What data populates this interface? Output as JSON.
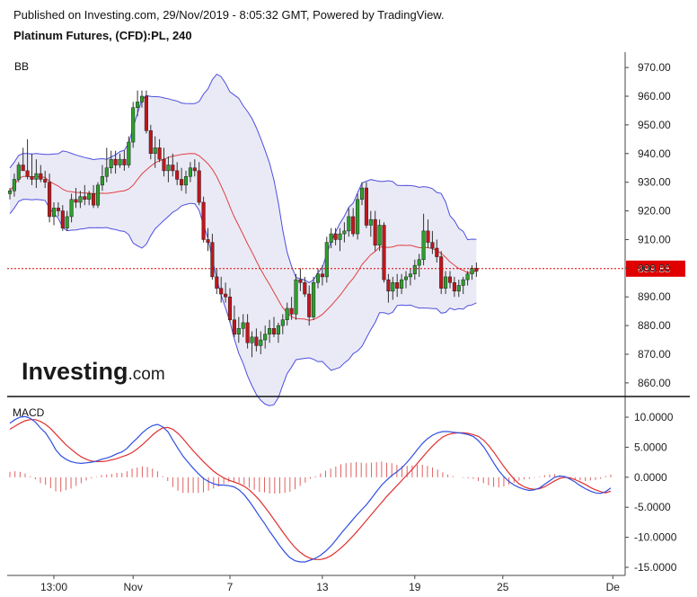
{
  "header": {
    "published": "Published on Investing.com, 29/Nov/2019 - 8:05:32 GMT, Powered by TradingView.",
    "instrument": "Platinum Futures, (CFD):PL, 240"
  },
  "logo": {
    "word": "Investing",
    "suffix": ".com"
  },
  "colors": {
    "up": "#2ca02c",
    "down": "#c0161c",
    "band": "#4e4ee0",
    "band_fill": "#e6e6f5",
    "mid": "#e04040",
    "macd": "#2f4fe0",
    "signal": "#e03030",
    "hist": "#e06060",
    "last": "#e00000"
  },
  "chart_data": [
    {
      "type": "candlestick",
      "panel_label": "BB",
      "y_ticks": [
        "970.00",
        "960.00",
        "950.00",
        "940.00",
        "930.00",
        "920.00",
        "910.00",
        "900.00",
        "890.00",
        "880.00",
        "870.00",
        "860.00"
      ],
      "ylim": [
        855,
        975
      ],
      "last_price": "899.85",
      "x_ticks": [
        {
          "label": "13:00",
          "i": 10
        },
        {
          "label": "Nov",
          "i": 28
        },
        {
          "label": "7",
          "i": 50
        },
        {
          "label": "13",
          "i": 71
        },
        {
          "label": "19",
          "i": 92
        },
        {
          "label": "25",
          "i": 112
        },
        {
          "label": "De",
          "i": 137
        }
      ],
      "candles": [
        [
          926,
          928,
          924,
          927
        ],
        [
          927,
          933,
          925,
          931
        ],
        [
          931,
          937,
          930,
          936
        ],
        [
          936,
          942,
          934,
          934
        ],
        [
          934,
          945,
          931,
          932
        ],
        [
          932,
          940,
          929,
          931
        ],
        [
          931,
          938,
          928,
          933
        ],
        [
          933,
          936,
          930,
          931
        ],
        [
          931,
          934,
          928,
          930
        ],
        [
          930,
          933,
          916,
          918
        ],
        [
          918,
          923,
          915,
          921
        ],
        [
          921,
          923,
          918,
          920
        ],
        [
          920,
          922,
          913,
          914
        ],
        [
          914,
          920,
          913,
          918
        ],
        [
          918,
          926,
          916,
          924
        ],
        [
          924,
          928,
          921,
          923
        ],
        [
          923,
          927,
          921,
          925
        ],
        [
          925,
          929,
          922,
          924
        ],
        [
          924,
          927,
          922,
          926
        ],
        [
          926,
          929,
          921,
          922
        ],
        [
          922,
          930,
          921,
          929
        ],
        [
          929,
          936,
          927,
          932
        ],
        [
          932,
          942,
          930,
          935
        ],
        [
          935,
          941,
          933,
          938
        ],
        [
          938,
          941,
          933,
          936
        ],
        [
          936,
          940,
          935,
          938
        ],
        [
          938,
          941,
          934,
          936
        ],
        [
          936,
          946,
          935,
          944
        ],
        [
          944,
          958,
          942,
          956
        ],
        [
          956,
          962,
          953,
          958
        ],
        [
          958,
          962,
          956,
          960
        ],
        [
          960,
          962,
          947,
          948
        ],
        [
          948,
          950,
          938,
          940
        ],
        [
          940,
          946,
          935,
          942
        ],
        [
          942,
          945,
          937,
          938
        ],
        [
          938,
          942,
          932,
          934
        ],
        [
          934,
          939,
          930,
          936
        ],
        [
          936,
          940,
          932,
          934
        ],
        [
          934,
          937,
          929,
          931
        ],
        [
          931,
          935,
          927,
          929
        ],
        [
          929,
          934,
          926,
          932
        ],
        [
          932,
          937,
          930,
          935
        ],
        [
          935,
          938,
          932,
          934
        ],
        [
          934,
          937,
          922,
          923
        ],
        [
          923,
          925,
          909,
          910
        ],
        [
          910,
          914,
          906,
          909
        ],
        [
          909,
          912,
          896,
          897
        ],
        [
          897,
          900,
          891,
          893
        ],
        [
          893,
          897,
          888,
          891
        ],
        [
          891,
          895,
          888,
          890
        ],
        [
          890,
          893,
          881,
          882
        ],
        [
          882,
          887,
          876,
          877
        ],
        [
          877,
          883,
          874,
          879
        ],
        [
          879,
          884,
          876,
          881
        ],
        [
          881,
          884,
          872,
          874
        ],
        [
          874,
          878,
          869,
          876
        ],
        [
          876,
          879,
          871,
          873
        ],
        [
          873,
          878,
          870,
          875
        ],
        [
          875,
          880,
          872,
          877
        ],
        [
          877,
          882,
          874,
          879
        ],
        [
          879,
          883,
          876,
          877
        ],
        [
          877,
          881,
          874,
          880
        ],
        [
          880,
          884,
          877,
          882
        ],
        [
          882,
          888,
          880,
          886
        ],
        [
          886,
          890,
          882,
          884
        ],
        [
          884,
          898,
          882,
          896
        ],
        [
          896,
          900,
          892,
          895
        ],
        [
          895,
          897,
          890,
          891
        ],
        [
          891,
          894,
          880,
          883
        ],
        [
          883,
          897,
          882,
          895
        ],
        [
          895,
          900,
          893,
          898
        ],
        [
          898,
          901,
          894,
          897
        ],
        [
          897,
          911,
          895,
          909
        ],
        [
          909,
          914,
          907,
          912
        ],
        [
          912,
          914,
          908,
          910
        ],
        [
          910,
          914,
          906,
          912
        ],
        [
          912,
          916,
          909,
          913
        ],
        [
          913,
          921,
          911,
          918
        ],
        [
          918,
          921,
          911,
          912
        ],
        [
          912,
          926,
          910,
          924
        ],
        [
          924,
          930,
          922,
          928
        ],
        [
          928,
          930,
          914,
          915
        ],
        [
          915,
          920,
          911,
          917
        ],
        [
          917,
          920,
          906,
          908
        ],
        [
          908,
          917,
          906,
          915
        ],
        [
          915,
          916,
          895,
          896
        ],
        [
          896,
          898,
          888,
          892
        ],
        [
          892,
          897,
          889,
          895
        ],
        [
          895,
          898,
          890,
          893
        ],
        [
          893,
          898,
          891,
          896
        ],
        [
          896,
          899,
          893,
          897
        ],
        [
          897,
          900,
          894,
          898
        ],
        [
          898,
          903,
          896,
          901
        ],
        [
          901,
          905,
          897,
          903
        ],
        [
          903,
          919,
          901,
          913
        ],
        [
          913,
          917,
          907,
          909
        ],
        [
          909,
          913,
          905,
          907
        ],
        [
          907,
          910,
          902,
          904
        ],
        [
          904,
          906,
          891,
          893
        ],
        [
          893,
          899,
          891,
          897
        ],
        [
          897,
          899,
          893,
          895
        ],
        [
          895,
          897,
          890,
          892
        ],
        [
          892,
          896,
          890,
          894
        ],
        [
          894,
          897,
          891,
          896
        ],
        [
          896,
          899,
          894,
          898
        ],
        [
          898,
          901,
          896,
          900
        ],
        [
          900,
          902,
          897,
          899
        ]
      ]
    },
    {
      "type": "line",
      "panel_label": "MACD",
      "y_ticks": [
        "10.0000",
        "5.0000",
        "0.0000",
        "-5.0000",
        "-10.0000",
        "-15.0000"
      ],
      "ylim": [
        -15.5,
        11
      ],
      "series": [
        {
          "role": "macd",
          "values": [
            9,
            9.6,
            10,
            10.1,
            9.8,
            9.2,
            8.2,
            7.4,
            6.1,
            4.6,
            3.6,
            3,
            2.6,
            2.4,
            2.3,
            2.4,
            2.5,
            2.7,
            3,
            3.2,
            3.5,
            3.9,
            4.2,
            4.8,
            5.7,
            6.5,
            7.4,
            8.1,
            8.6,
            8.8,
            8.4,
            7.6,
            6.2,
            4.8,
            3.5,
            2.5,
            1.5,
            0.6,
            -0.2,
            -0.7,
            -1.1,
            -1.3,
            -1.3,
            -1.4,
            -1.6,
            -2.1,
            -2.9,
            -4,
            -5.2,
            -6.5,
            -7.7,
            -9,
            -10.2,
            -11.4,
            -12.5,
            -13.4,
            -13.9,
            -14.1,
            -14.1,
            -13.8,
            -13.5,
            -13,
            -12.3,
            -11.5,
            -10.5,
            -9.4,
            -8.4,
            -7.4,
            -6.4,
            -5.5,
            -4.6,
            -3.5,
            -2.4,
            -1.3,
            -0.5,
            0.3,
            0.9,
            1.6,
            2.5,
            3.5,
            4.6,
            5.6,
            6.4,
            7,
            7.4,
            7.6,
            7.6,
            7.5,
            7.4,
            7.3,
            7.1,
            6.8,
            6.1,
            5.1,
            3.8,
            2.4,
            1.1,
            0.1,
            -0.7,
            -1.3,
            -1.7,
            -2,
            -2.2,
            -2.1,
            -1.8,
            -1.2,
            -0.6,
            0,
            0.2,
            0.1,
            -0.3,
            -0.8,
            -1.4,
            -1.9,
            -2.3,
            -2.6,
            -2.7,
            -2.4,
            -1.8
          ]
        },
        {
          "role": "signal",
          "values": [
            8,
            8.5,
            9,
            9.4,
            9.6,
            9.6,
            9.3,
            8.8,
            8.1,
            7.2,
            6.3,
            5.4,
            4.7,
            4,
            3.4,
            3,
            2.7,
            2.6,
            2.6,
            2.7,
            2.9,
            3.1,
            3.4,
            3.7,
            4.1,
            4.7,
            5.4,
            6.2,
            7,
            7.7,
            8.2,
            8.3,
            8,
            7.3,
            6.4,
            5.4,
            4.4,
            3.5,
            2.6,
            1.8,
            1,
            0.4,
            -0.1,
            -0.5,
            -0.8,
            -1.1,
            -1.5,
            -2.1,
            -2.9,
            -3.8,
            -4.9,
            -6,
            -7.2,
            -8.4,
            -9.6,
            -10.7,
            -11.7,
            -12.5,
            -13.1,
            -13.5,
            -13.7,
            -13.7,
            -13.5,
            -13.1,
            -12.5,
            -11.8,
            -11,
            -10.1,
            -9.2,
            -8.2,
            -7.2,
            -6.2,
            -5.2,
            -4.2,
            -3.2,
            -2.3,
            -1.4,
            -0.5,
            0.4,
            1.3,
            2.3,
            3.3,
            4.3,
            5.2,
            6,
            6.7,
            7.1,
            7.3,
            7.4,
            7.4,
            7.3,
            7.1,
            6.8,
            6.2,
            5.3,
            4.2,
            3,
            1.8,
            0.7,
            -0.3,
            -1.1,
            -1.6,
            -1.9,
            -2,
            -1.9,
            -1.6,
            -1.1,
            -0.6,
            -0.2,
            0,
            -0.1,
            -0.4,
            -0.8,
            -1.2,
            -1.7,
            -2.1,
            -2.4,
            -2.6,
            -2.3
          ]
        }
      ],
      "zero_line": "0.0000"
    }
  ]
}
